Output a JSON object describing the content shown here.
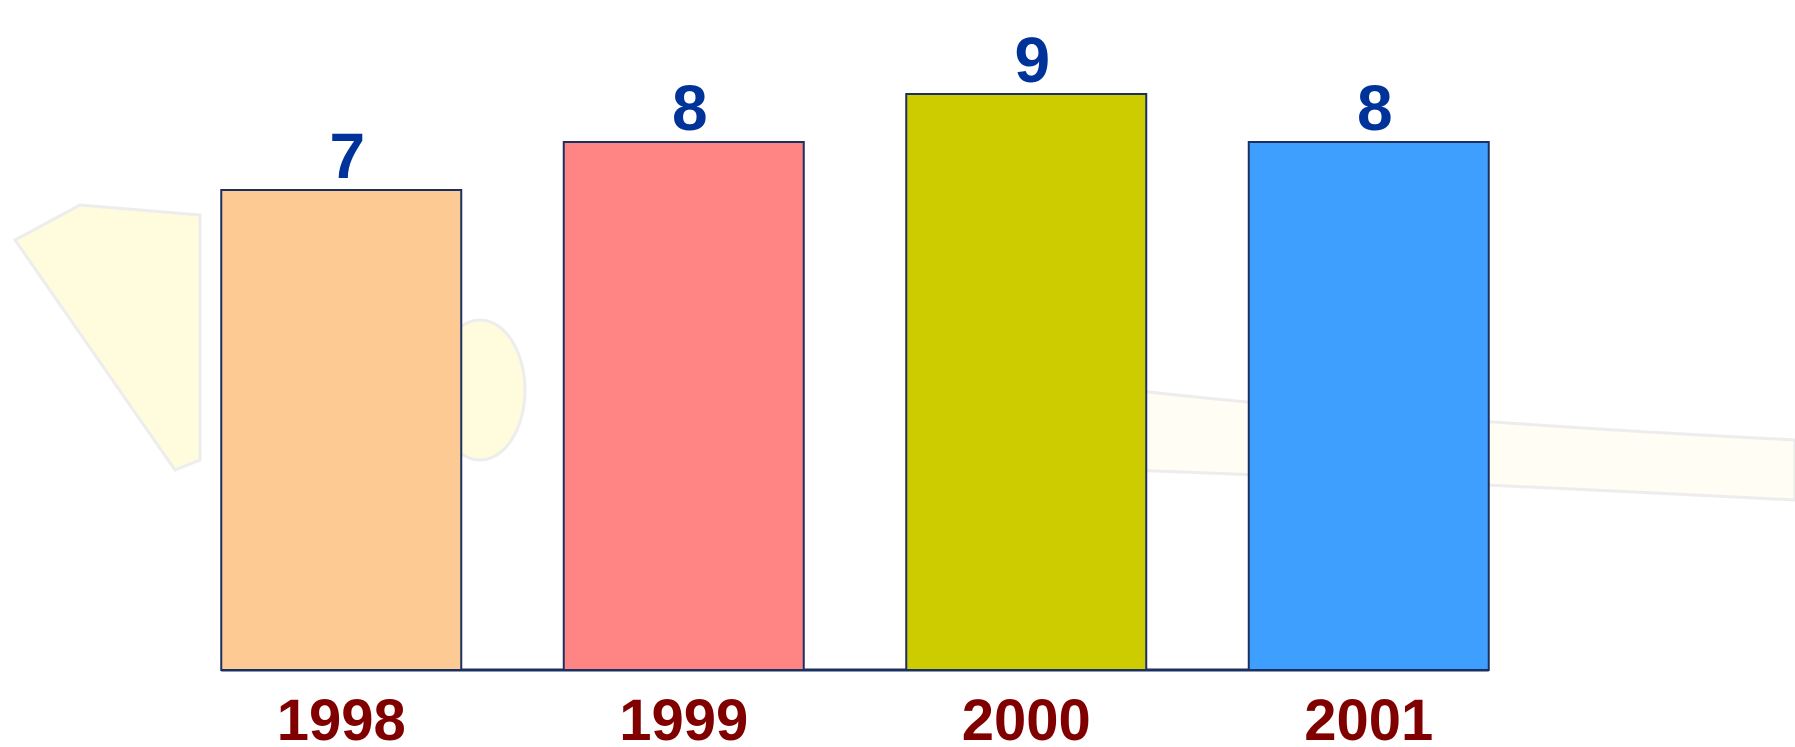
{
  "chart_data": {
    "type": "bar",
    "categories": [
      "1998",
      "1999",
      "2000",
      "2001"
    ],
    "values": [
      7,
      8,
      9,
      8
    ],
    "colors": [
      "#fdca94",
      "#ff8585",
      "#cccc00",
      "#3f9fff"
    ],
    "ylim": [
      -3,
      11
    ]
  }
}
